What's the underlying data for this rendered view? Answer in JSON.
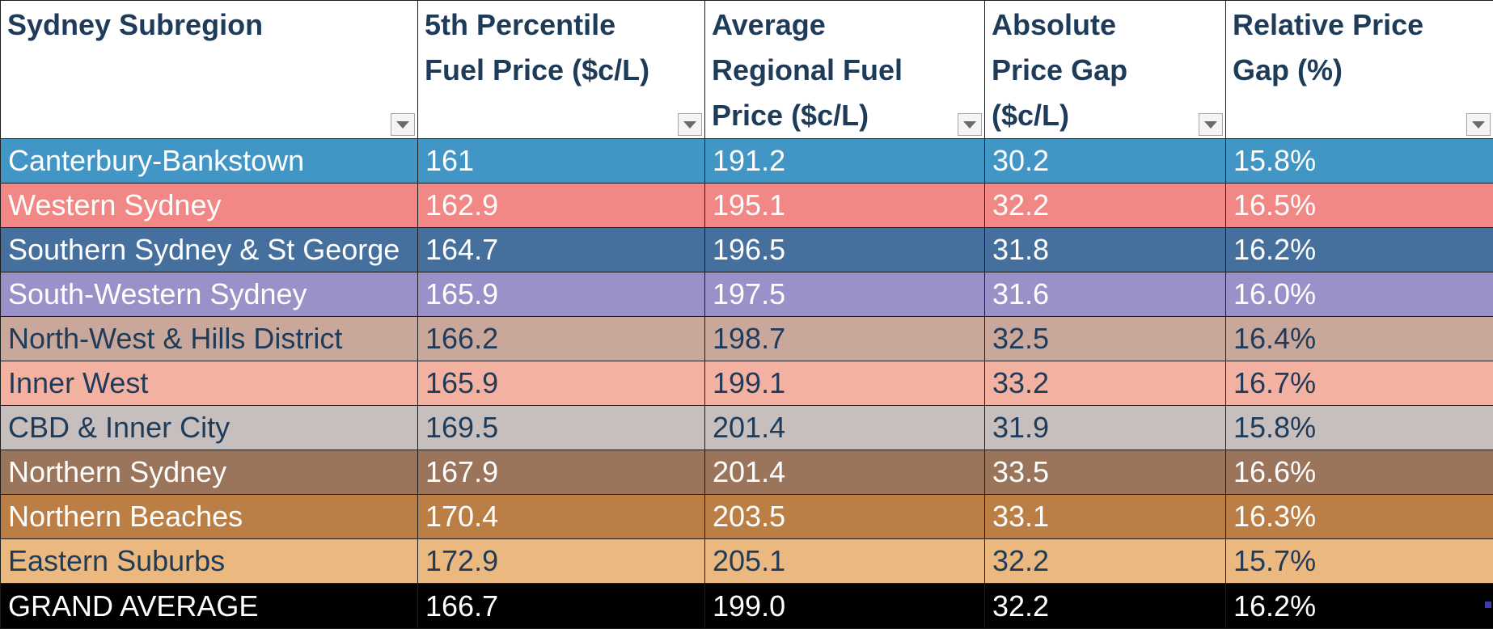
{
  "table": {
    "headers": [
      "Sydney Subregion",
      "5th Percentile Fuel Price ($c/L)",
      "Average Regional Fuel Price ($c/L)",
      "Absolute Price Gap ($c/L)",
      "Relative Price Gap (%)"
    ],
    "rows": [
      {
        "cells": [
          "Canterbury-Bankstown",
          "161",
          "191.2",
          "30.2",
          "15.8%"
        ],
        "color": "#4196c6",
        "text_color": "#ffffff"
      },
      {
        "cells": [
          "Western Sydney",
          "162.9",
          "195.1",
          "32.2",
          "16.5%"
        ],
        "color": "#f28885",
        "text_color": "#ffffff"
      },
      {
        "cells": [
          "Southern Sydney & St George",
          "164.7",
          "196.5",
          "31.8",
          "16.2%"
        ],
        "color": "#45709e",
        "text_color": "#ffffff"
      },
      {
        "cells": [
          "South-Western Sydney",
          "165.9",
          "197.5",
          "31.6",
          "16.0%"
        ],
        "color": "#9b91c9",
        "text_color": "#ffffff"
      },
      {
        "cells": [
          "North-West & Hills District",
          "166.2",
          "198.7",
          "32.5",
          "16.4%"
        ],
        "color": "#c9a79b",
        "text_color": "#1f3b5a"
      },
      {
        "cells": [
          "Inner West",
          "165.9",
          "199.1",
          "33.2",
          "16.7%"
        ],
        "color": "#f3b2a1",
        "text_color": "#1f3b5a"
      },
      {
        "cells": [
          "CBD & Inner City",
          "169.5",
          "201.4",
          "31.9",
          "15.8%"
        ],
        "color": "#c6bfbd",
        "text_color": "#1f3b5a"
      },
      {
        "cells": [
          "Northern Sydney",
          "167.9",
          "201.4",
          "33.5",
          "16.6%"
        ],
        "color": "#9b745c",
        "text_color": "#ffffff"
      },
      {
        "cells": [
          "Northern Beaches",
          "170.4",
          "203.5",
          "33.1",
          "16.3%"
        ],
        "color": "#bb7f45",
        "text_color": "#ffffff"
      },
      {
        "cells": [
          "Eastern Suburbs",
          "172.9",
          "205.1",
          "32.2",
          "15.7%"
        ],
        "color": "#ebb87f",
        "text_color": "#1f3b5a"
      }
    ],
    "grand_total": [
      "GRAND AVERAGE",
      "166.7",
      "199.0",
      "32.2",
      "16.2%"
    ]
  },
  "icons": {
    "filter": "filter-dropdown-icon",
    "resize": "table-resize-handle-icon"
  },
  "colors": {
    "header_text": "#1f3b5a",
    "grid": "#1c1c1c",
    "grand_bg": "#000000"
  }
}
